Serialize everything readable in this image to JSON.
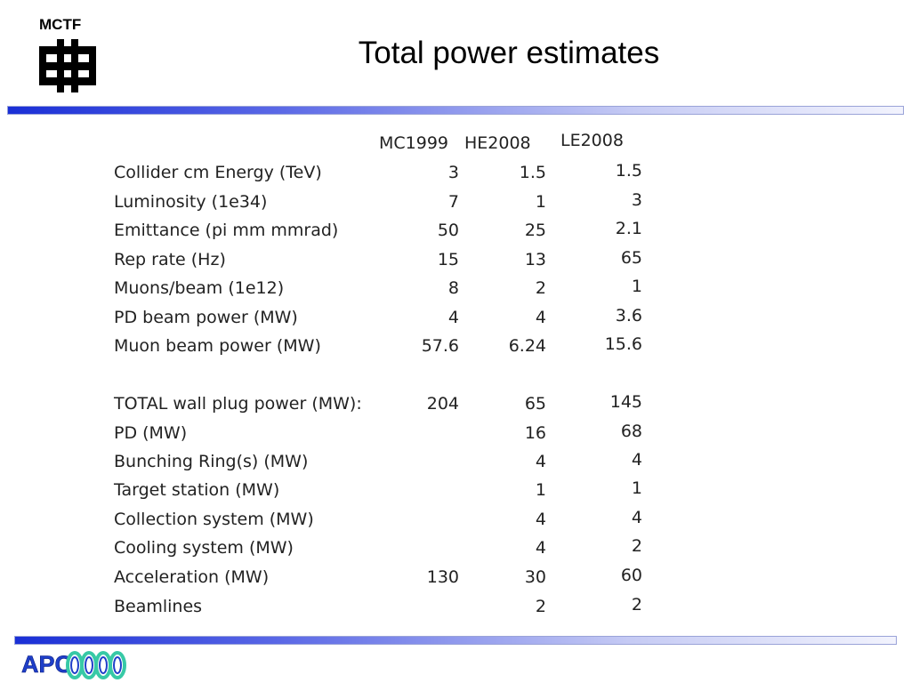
{
  "header": {
    "org_label": "MCTF",
    "title": "Total power estimates"
  },
  "table": {
    "columns": [
      "MC1999",
      "HE2008",
      "LE2008"
    ],
    "rows": [
      {
        "label": "Collider cm Energy (TeV)",
        "values": [
          "3",
          "1.5",
          "1.5"
        ]
      },
      {
        "label": "Luminosity (1e34)",
        "values": [
          "7",
          "1",
          "3"
        ]
      },
      {
        "label": "Emittance (pi mm mmrad)",
        "values": [
          "50",
          "25",
          "2.1"
        ]
      },
      {
        "label": "Rep rate (Hz)",
        "values": [
          "15",
          "13",
          "65"
        ]
      },
      {
        "label": "Muons/beam (1e12)",
        "values": [
          "8",
          "2",
          "1"
        ]
      },
      {
        "label": "PD beam power (MW)",
        "values": [
          "4",
          "4",
          "3.6"
        ]
      },
      {
        "label": "Muon beam power (MW)",
        "values": [
          "57.6",
          "6.24",
          "15.6"
        ]
      },
      {
        "label": "TOTAL wall plug power (MW):",
        "values": [
          "204",
          "65",
          "145"
        ]
      },
      {
        "label": "PD (MW)",
        "values": [
          "",
          "16",
          "68"
        ]
      },
      {
        "label": "Bunching Ring(s) (MW)",
        "values": [
          "",
          "4",
          "4"
        ]
      },
      {
        "label": "Target station (MW)",
        "values": [
          "",
          "1",
          "1"
        ]
      },
      {
        "label": "Collection system (MW)",
        "values": [
          "",
          "4",
          "4"
        ]
      },
      {
        "label": "Cooling system (MW)",
        "values": [
          "",
          "4",
          "2"
        ]
      },
      {
        "label": "Acceleration (MW)",
        "values": [
          "130",
          "30",
          "60"
        ]
      },
      {
        "label": "Beamlines",
        "values": [
          "",
          "2",
          "2"
        ]
      }
    ]
  },
  "footer": {
    "logo_text": "APC"
  },
  "colors": {
    "bar_blue": "#1a2fd6",
    "logo_blue": "#1f3fc9",
    "logo_green": "#37c9a6"
  }
}
